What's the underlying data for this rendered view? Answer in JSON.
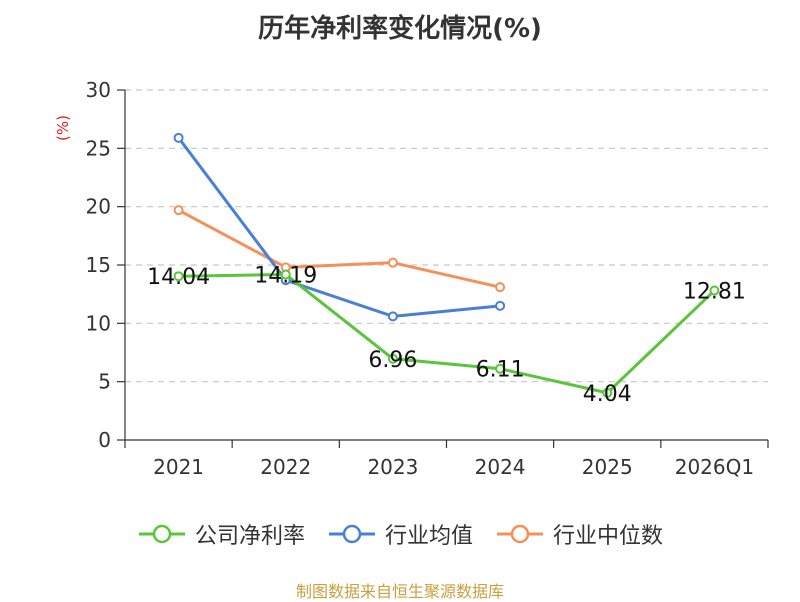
{
  "chart_data": {
    "type": "line",
    "title": "历年净利率变化情况(%)",
    "ylabel": "(%)",
    "categories": [
      "2021",
      "2022",
      "2023",
      "2024",
      "2025",
      "2026Q1"
    ],
    "ylim": [
      0,
      30
    ],
    "yticks": [
      0,
      5,
      10,
      15,
      20,
      25,
      30
    ],
    "grid": true,
    "legend_position": "bottom",
    "series": [
      {
        "name": "公司净利率",
        "color": "#5ac53a",
        "values": [
          14.04,
          14.19,
          6.96,
          6.11,
          4.04,
          12.81
        ],
        "labels": [
          "14.04",
          "14.19",
          "6.96",
          "6.11",
          "4.04",
          "12.81"
        ]
      },
      {
        "name": "行业均值",
        "color": "#4a7fd8",
        "values": [
          25.9,
          13.7,
          10.6,
          11.5,
          null,
          null
        ]
      },
      {
        "name": "行业中位数",
        "color": "#f5905a",
        "values": [
          19.7,
          14.8,
          15.2,
          13.1,
          null,
          null
        ]
      }
    ]
  },
  "footer": {
    "source": "制图数据来自恒生聚源数据库"
  }
}
